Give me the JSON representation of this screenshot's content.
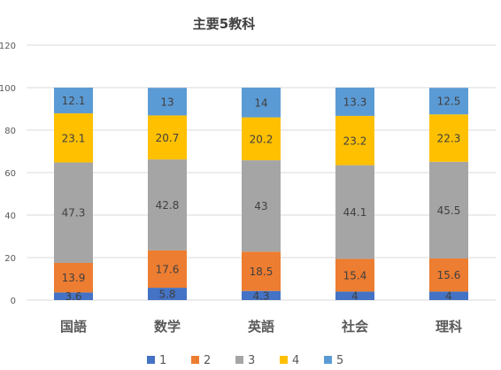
{
  "chart_data": {
    "type": "bar",
    "stacked": true,
    "title": "主要5教科",
    "categories": [
      "国語",
      "数学",
      "英語",
      "社会",
      "理科"
    ],
    "series": [
      {
        "name": "1",
        "color": "#4472C4",
        "values": [
          3.6,
          5.8,
          4.3,
          4,
          4
        ]
      },
      {
        "name": "2",
        "color": "#ED7D31",
        "values": [
          13.9,
          17.6,
          18.5,
          15.4,
          15.6
        ]
      },
      {
        "name": "3",
        "color": "#A5A5A5",
        "values": [
          47.3,
          42.8,
          43,
          44.1,
          45.5
        ]
      },
      {
        "name": "4",
        "color": "#FFC000",
        "values": [
          23.1,
          20.7,
          20.2,
          23.2,
          22.3
        ]
      },
      {
        "name": "5",
        "color": "#5B9BD5",
        "values": [
          12.1,
          13,
          14,
          13.3,
          12.5
        ]
      }
    ],
    "yticks": [
      "0",
      "20",
      "40",
      "60",
      "80",
      "100",
      "120"
    ],
    "ylim": [
      0,
      120
    ],
    "grid": true,
    "legend_position": "bottom"
  }
}
